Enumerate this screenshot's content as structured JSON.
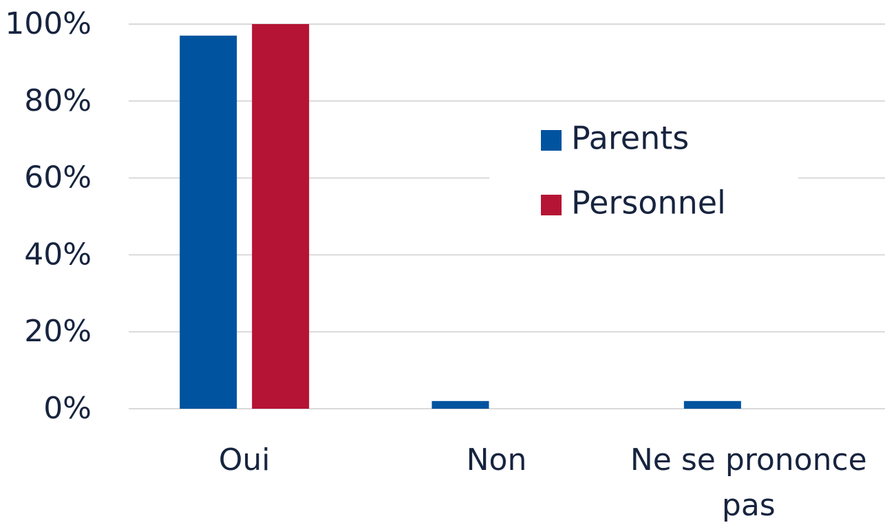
{
  "chart_data": {
    "type": "bar",
    "categories": [
      "Oui",
      "Non",
      "Ne se prononce pas"
    ],
    "series": [
      {
        "name": "Parents",
        "color": "#00539f",
        "values": [
          97,
          2,
          2
        ]
      },
      {
        "name": "Personnel",
        "color": "#b51434",
        "values": [
          100,
          0,
          0
        ]
      }
    ],
    "ylim": [
      0,
      100
    ],
    "yticks": [
      {
        "value": 0,
        "label": "0%"
      },
      {
        "value": 20,
        "label": "20%"
      },
      {
        "value": 40,
        "label": "40%"
      },
      {
        "value": 60,
        "label": "60%"
      },
      {
        "value": 80,
        "label": "80%"
      },
      {
        "value": 100,
        "label": "100%"
      }
    ],
    "grid": true,
    "legend": "right"
  }
}
